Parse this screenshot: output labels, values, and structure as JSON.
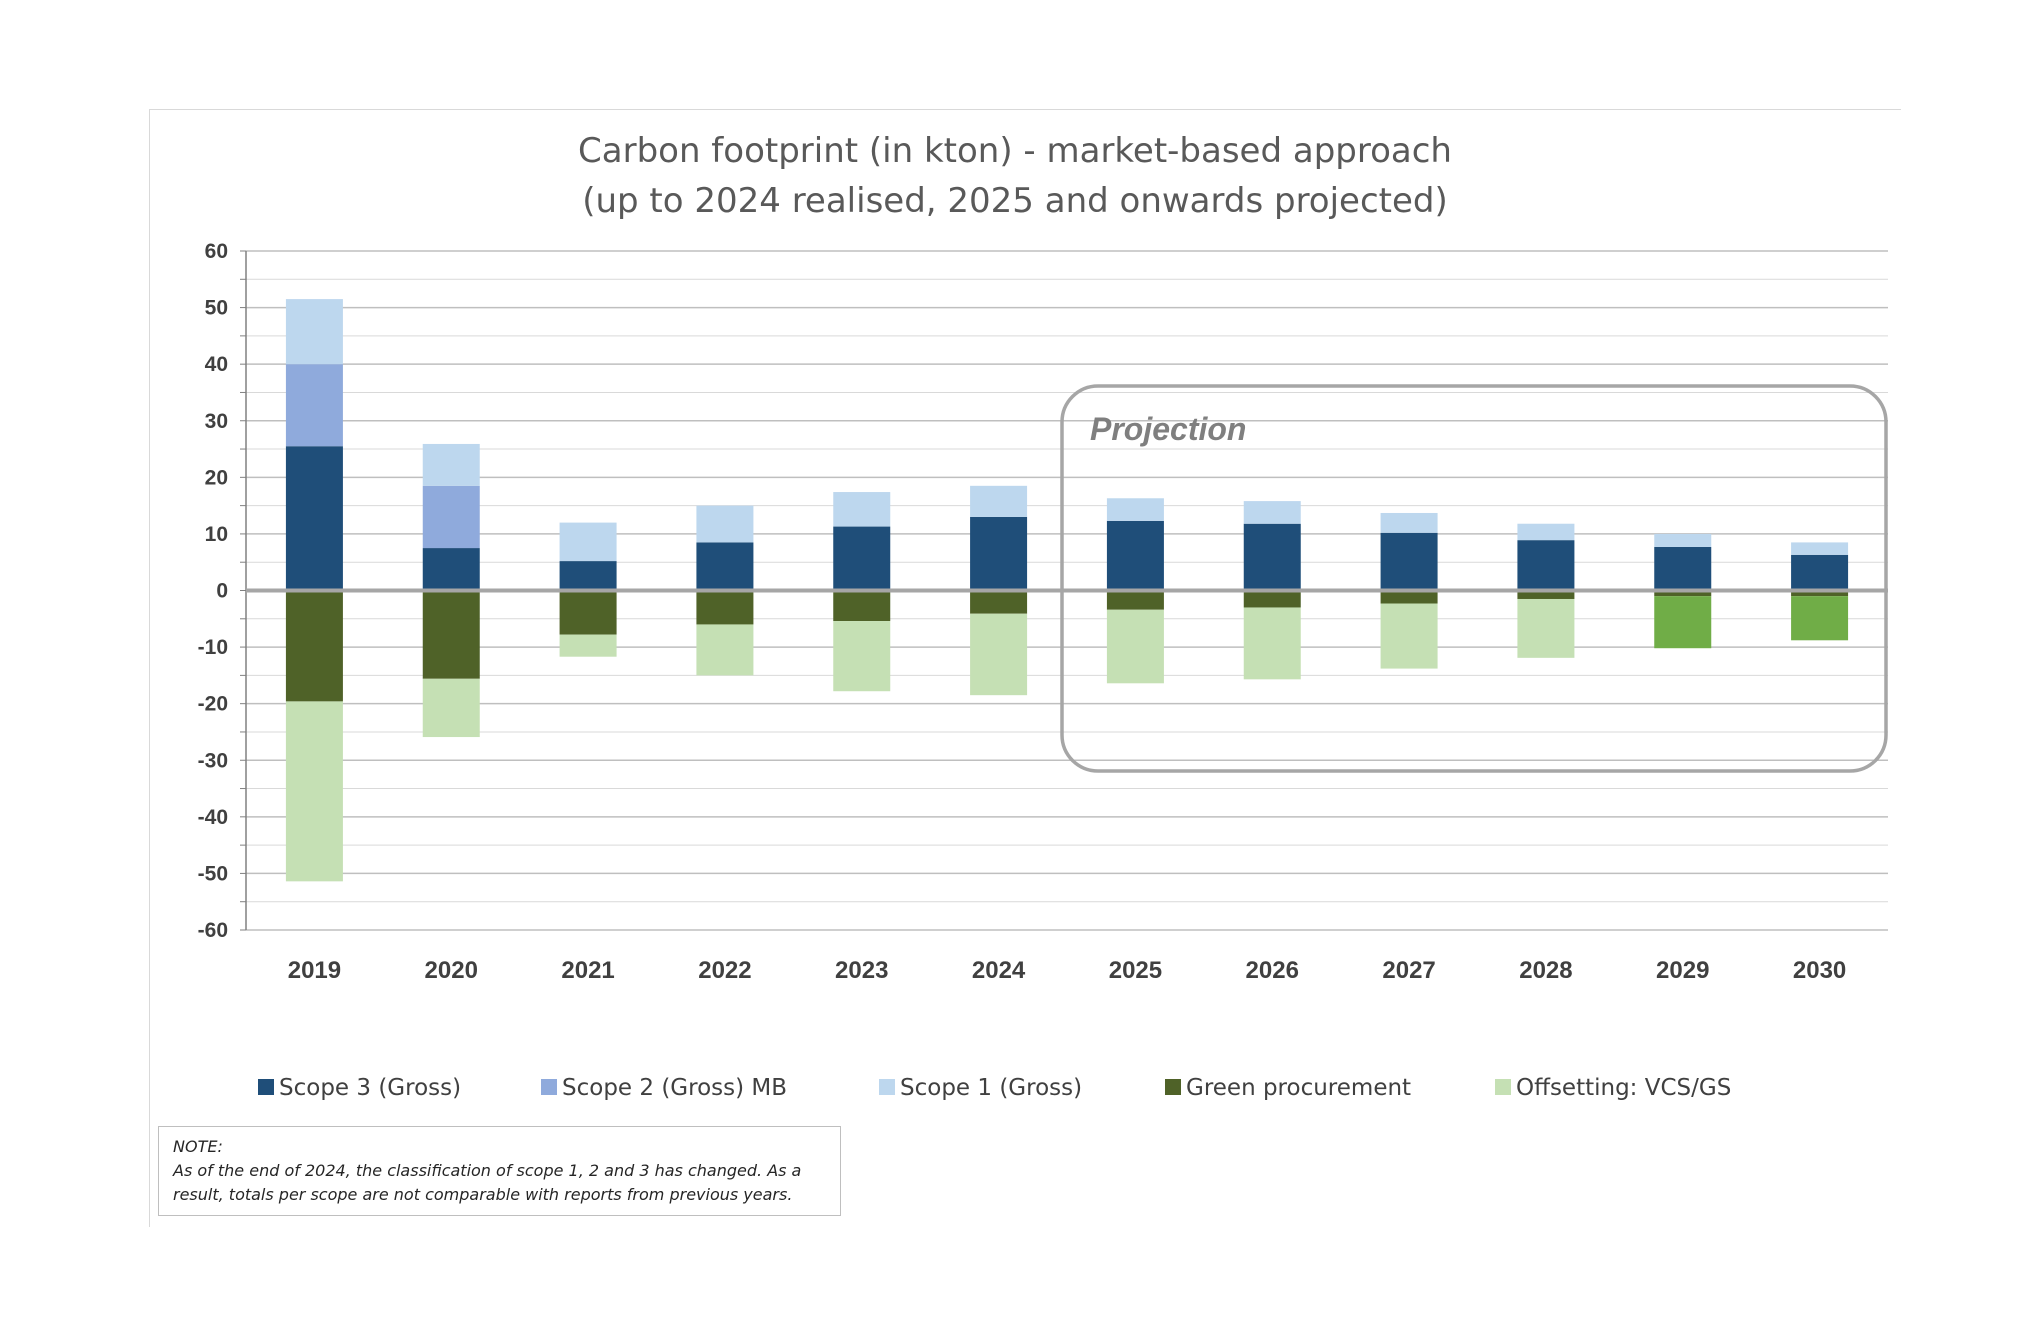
{
  "chart_data": {
    "type": "bar",
    "stacked": true,
    "title": "Carbon footprint  (in kton) - market-based approach",
    "subtitle": "(up to 2024 realised, 2025 and onwards projected)",
    "xlabel": "",
    "ylabel": "",
    "ylim": [
      -60,
      60
    ],
    "yticks": [
      60,
      50,
      40,
      30,
      20,
      10,
      0,
      -10,
      -20,
      -30,
      -40,
      -50,
      -60
    ],
    "grid": true,
    "categories": [
      "2019",
      "2020",
      "2021",
      "2022",
      "2023",
      "2024",
      "2025",
      "2026",
      "2027",
      "2028",
      "2029",
      "2030"
    ],
    "series": [
      {
        "name": "Scope 3  (Gross)",
        "color": "#1f4e79",
        "values": [
          25.5,
          7.5,
          5.2,
          8.5,
          11.3,
          13.0,
          12.3,
          11.8,
          10.2,
          8.9,
          7.7,
          6.3
        ]
      },
      {
        "name": "Scope 2  (Gross)  MB",
        "color": "#8faadc",
        "values": [
          14.5,
          11.0,
          0,
          0,
          0,
          0,
          0,
          0,
          0,
          0,
          0,
          0
        ]
      },
      {
        "name": "Scope 1  (Gross)",
        "color": "#bdd7ee",
        "values": [
          11.5,
          7.4,
          6.8,
          6.5,
          6.1,
          5.5,
          4.0,
          4.0,
          3.5,
          2.9,
          2.3,
          2.2
        ]
      },
      {
        "name": "Green procurement",
        "color": "#4f6228",
        "values": [
          -19.6,
          -15.6,
          -7.8,
          -6.0,
          -5.4,
          -4.1,
          -3.4,
          -3.0,
          -2.3,
          -1.5,
          -1.0,
          -1.0
        ]
      },
      {
        "name": "Offsetting: VCS/GS",
        "color": "#c5e0b4",
        "values": [
          -31.8,
          -10.3,
          -3.9,
          -9.0,
          -12.4,
          -14.4,
          -13.0,
          -12.7,
          -11.5,
          -10.4,
          0,
          0
        ]
      },
      {
        "name": "",
        "color": "#70ad47",
        "values": [
          0,
          0,
          0,
          0,
          0,
          0,
          0,
          0,
          0,
          0,
          -9.2,
          -7.8
        ]
      }
    ],
    "legend": [
      "Scope 3  (Gross)",
      "Scope 2  (Gross)  MB",
      "Scope 1  (Gross)",
      "Green procurement",
      "Offsetting: VCS/GS"
    ],
    "legend_position": "bottom",
    "annotation": {
      "text": "Projection",
      "from_category": "2025",
      "to_category": "2030"
    }
  },
  "note": {
    "heading": "NOTE:",
    "line1": "As of the end of 2024, the classification of scope 1, 2 and 3 has changed. As a",
    "line2": "result, totals per scope are not comparable with reports from previous years."
  }
}
